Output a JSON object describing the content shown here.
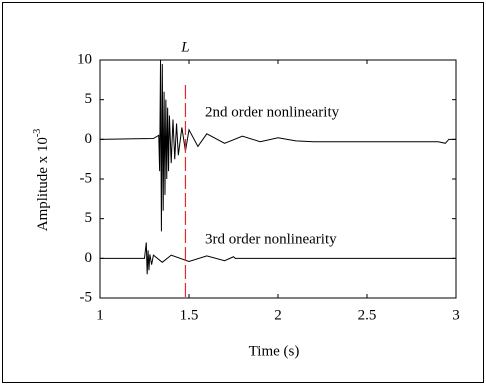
{
  "chart_data": {
    "type": "line",
    "y_label": "Amplitude x 10",
    "y_label_superscript": "-3",
    "x_label": "Time (s)",
    "xlim": [
      1,
      3
    ],
    "xticks": [
      1,
      1.5,
      2,
      2.5,
      3
    ],
    "ylim": [
      -20,
      10
    ],
    "yticks": [
      10,
      5,
      0,
      -5,
      {
        "value": -10,
        "label": "5"
      },
      {
        "value": -15,
        "label": "0"
      },
      {
        "value": -20,
        "label": "-5"
      }
    ],
    "series": [
      {
        "name": "2nd order nonlinearity",
        "color": "#000000",
        "x": [
          1,
          1.3,
          1.33,
          1.335,
          1.34,
          1.345,
          1.35,
          1.355,
          1.36,
          1.365,
          1.37,
          1.375,
          1.38,
          1.385,
          1.39,
          1.4,
          1.41,
          1.42,
          1.43,
          1.44,
          1.46,
          1.48,
          1.5,
          1.55,
          1.6,
          1.7,
          1.8,
          1.9,
          2,
          2.1,
          2.2,
          2.9,
          2.94,
          2.96,
          3
        ],
        "values": [
          0,
          0.1,
          0.5,
          -4,
          10,
          -11.6,
          9.5,
          -9,
          6,
          -7,
          5,
          -5,
          4,
          -4,
          3,
          -3,
          2.5,
          -2.5,
          2,
          -2,
          1.5,
          -1.5,
          1.2,
          -0.9,
          0.7,
          -0.5,
          0.4,
          -0.3,
          0.2,
          -0.2,
          -0.3,
          -0.3,
          -0.5,
          0,
          0
        ]
      },
      {
        "name": "3rd order nonlinearity",
        "color": "#000000",
        "x": [
          1,
          1.25,
          1.26,
          1.265,
          1.27,
          1.275,
          1.28,
          1.29,
          1.3,
          1.35,
          1.4,
          1.5,
          1.6,
          1.7,
          1.75,
          1.76,
          3
        ],
        "values": [
          -15,
          -15,
          -13,
          -17,
          -14,
          -16.5,
          -14.5,
          -15.8,
          -14.6,
          -15.5,
          -14.6,
          -15.4,
          -14.7,
          -15.3,
          -14.8,
          -15,
          -15
        ]
      }
    ],
    "annotation": {
      "label": "L",
      "x": 1.48,
      "color": "#e8282b"
    }
  }
}
